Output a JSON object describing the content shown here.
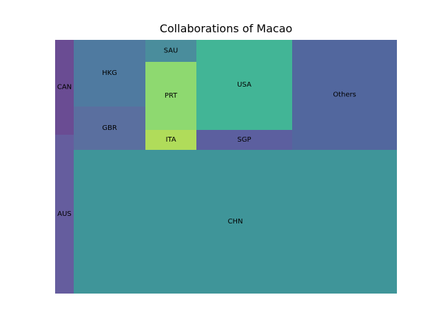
{
  "chart_data": {
    "type": "treemap",
    "title": "Collaborations of Macao",
    "cells": [
      {
        "label": "CAN",
        "value": 2.0,
        "color": "#6a4c93"
      },
      {
        "label": "AUS",
        "value": 3.0,
        "color": "#655d9e"
      },
      {
        "label": "HKG",
        "value": 5.2,
        "color": "#4f7aa0"
      },
      {
        "label": "GBR",
        "value": 3.4,
        "color": "#5a6f9f"
      },
      {
        "label": "SAU",
        "value": 1.2,
        "color": "#4a8d9c"
      },
      {
        "label": "PRT",
        "value": 3.9,
        "color": "#8ed970"
      },
      {
        "label": "ITA",
        "value": 1.2,
        "color": "#b0dc5a"
      },
      {
        "label": "USA",
        "value": 9.5,
        "color": "#42b596"
      },
      {
        "label": "SGP",
        "value": 2.1,
        "color": "#5c5f9f"
      },
      {
        "label": "Others",
        "value": 12.5,
        "color": "#52679e"
      },
      {
        "label": "CHN",
        "value": 51.0,
        "color": "#3f9599"
      }
    ]
  }
}
